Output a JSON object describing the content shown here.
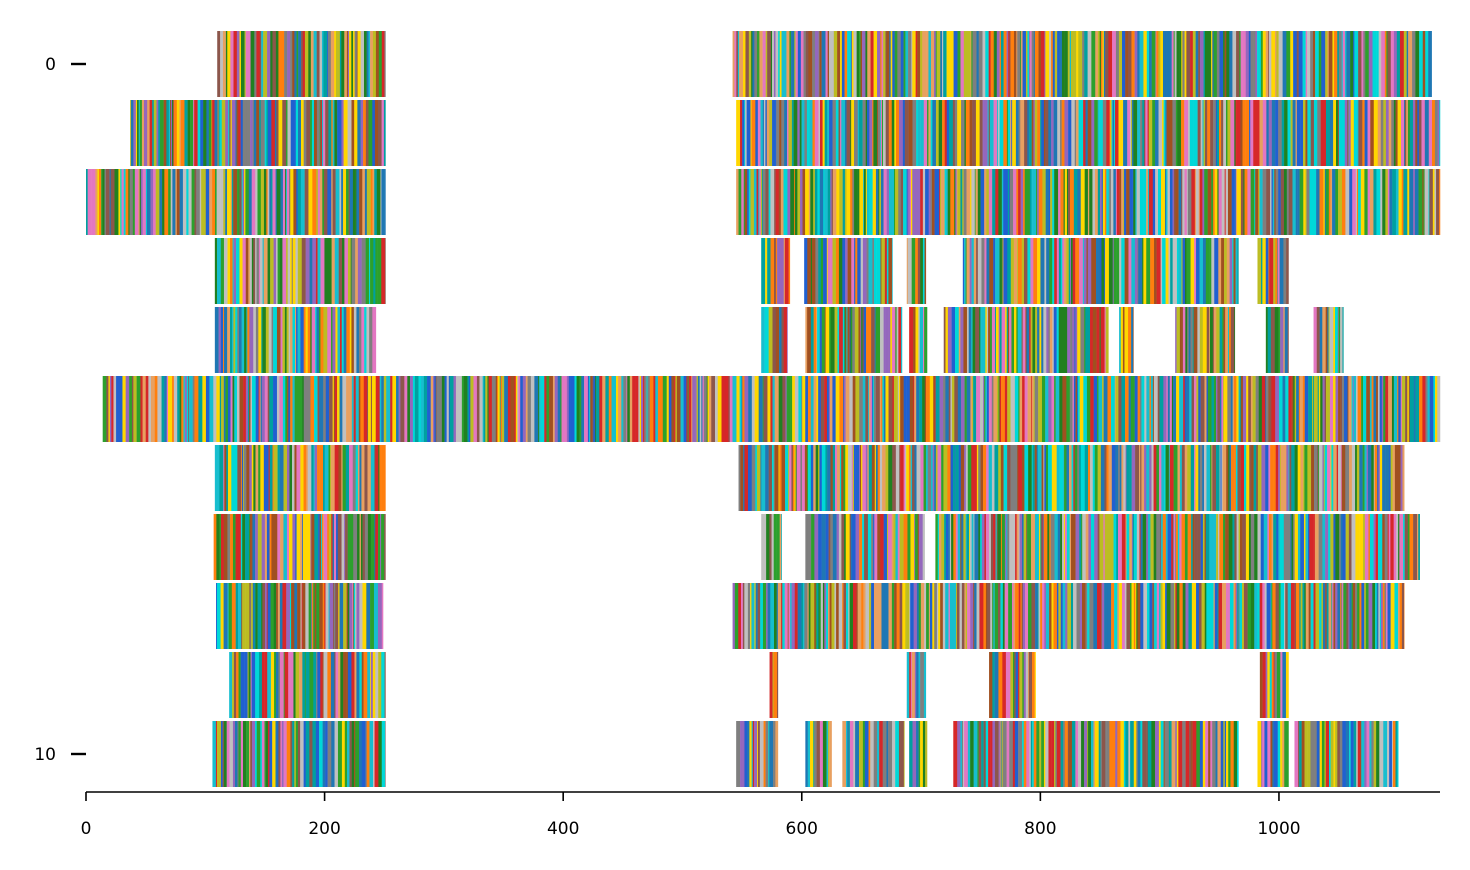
{
  "chart_data": {
    "type": "heatmap",
    "title": "",
    "xlabel": "",
    "ylabel": "",
    "xlim": [
      0,
      1135
    ],
    "ylim": [
      10.5,
      -0.5
    ],
    "x_ticks": [
      0,
      200,
      400,
      600,
      800,
      1000
    ],
    "y_ticks": [
      0,
      10
    ],
    "grid": false,
    "palette": [
      "#1f77b4",
      "#ff7f0e",
      "#2ca02c",
      "#d62728",
      "#9467bd",
      "#8c564b",
      "#e377c2",
      "#7f7f7f",
      "#bcbd22",
      "#17becf",
      "#00a0a0",
      "#2060d0",
      "#e8a060",
      "#00d8d8",
      "#ffd700",
      "#208020",
      "#a05020",
      "#c0c0c0"
    ],
    "rows": [
      {
        "row": 0,
        "segments": [
          [
            110,
            251
          ],
          [
            542,
            1128
          ]
        ]
      },
      {
        "row": 1,
        "segments": [
          [
            37,
            251
          ],
          [
            545,
            1135
          ]
        ]
      },
      {
        "row": 2,
        "segments": [
          [
            0,
            251
          ],
          [
            545,
            1135
          ]
        ]
      },
      {
        "row": 3,
        "segments": [
          [
            108,
            251
          ],
          [
            566,
            590
          ],
          [
            602,
            676
          ],
          [
            688,
            704
          ],
          [
            735,
            966
          ],
          [
            982,
            1008
          ]
        ]
      },
      {
        "row": 4,
        "segments": [
          [
            108,
            243
          ],
          [
            566,
            588
          ],
          [
            603,
            684
          ],
          [
            690,
            705
          ],
          [
            719,
            857
          ],
          [
            866,
            878
          ],
          [
            913,
            963
          ],
          [
            989,
            1008
          ],
          [
            1029,
            1054
          ]
        ]
      },
      {
        "row": 5,
        "segments": [
          [
            14,
            1135
          ]
        ]
      },
      {
        "row": 6,
        "segments": [
          [
            108,
            251
          ],
          [
            547,
            1105
          ]
        ]
      },
      {
        "row": 7,
        "segments": [
          [
            107,
            251
          ],
          [
            566,
            583
          ],
          [
            603,
            703
          ],
          [
            712,
            1002
          ],
          [
            982,
            1118
          ]
        ]
      },
      {
        "row": 8,
        "segments": [
          [
            109,
            249
          ],
          [
            542,
            1105
          ]
        ]
      },
      {
        "row": 9,
        "segments": [
          [
            120,
            251
          ],
          [
            573,
            580
          ],
          [
            688,
            704
          ],
          [
            757,
            796
          ],
          [
            984,
            1008
          ]
        ]
      },
      {
        "row": 10,
        "segments": [
          [
            106,
            251
          ],
          [
            545,
            580
          ],
          [
            603,
            625
          ],
          [
            634,
            686
          ],
          [
            690,
            705
          ],
          [
            727,
            966
          ],
          [
            982,
            1008
          ],
          [
            1013,
            1100
          ]
        ]
      }
    ]
  }
}
